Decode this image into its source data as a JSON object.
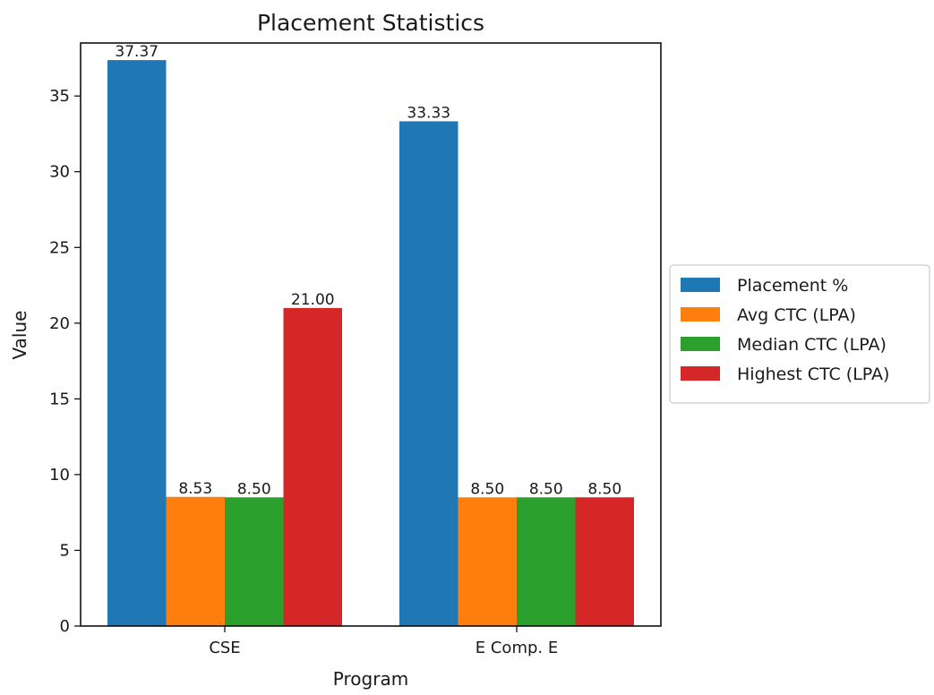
{
  "chart_data": {
    "type": "bar",
    "title": "Placement Statistics",
    "xlabel": "Program",
    "ylabel": "Value",
    "categories": [
      "CSE",
      "E Comp. E"
    ],
    "series": [
      {
        "name": "Placement %",
        "values": [
          37.37,
          33.33
        ],
        "labels": [
          "37.37",
          "33.33"
        ],
        "color": "#1f77b4"
      },
      {
        "name": "Avg CTC (LPA)",
        "values": [
          8.53,
          8.5
        ],
        "labels": [
          "8.53",
          "8.50"
        ],
        "color": "#ff7f0e"
      },
      {
        "name": "Median CTC (LPA)",
        "values": [
          8.5,
          8.5
        ],
        "labels": [
          "8.50",
          "8.50"
        ],
        "color": "#2ca02c"
      },
      {
        "name": "Highest CTC (LPA)",
        "values": [
          21.0,
          8.5
        ],
        "labels": [
          "21.00",
          "8.50"
        ],
        "color": "#d62728"
      }
    ],
    "ylim": [
      0,
      38.5
    ],
    "yticks": [
      0,
      5,
      10,
      15,
      20,
      25,
      30,
      35
    ],
    "grid": false,
    "legend_position": "center-right, outside plot"
  }
}
